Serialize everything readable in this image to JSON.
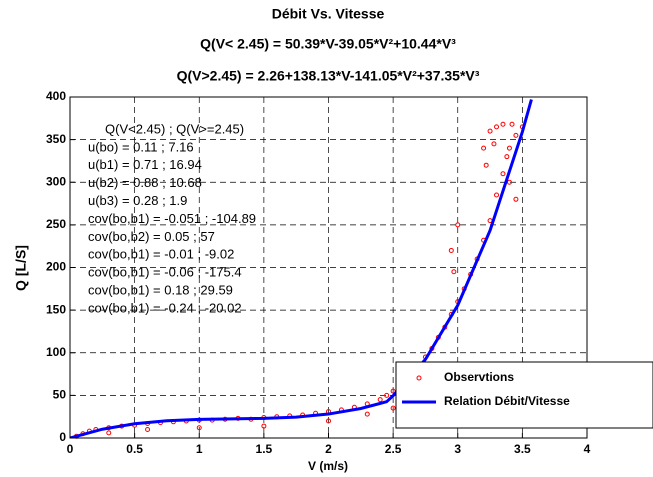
{
  "chart_data": {
    "type": "scatter",
    "title": "Débit Vs. Vitesse",
    "subtitles": [
      "Q(V< 2.45) = 50.39*V-39.05*V²+10.44*V³",
      "Q(V>2.45) = 2.26+138.13*V-141.05*V²+37.35*V³"
    ],
    "x_label": "V (m/s)",
    "y_label": "Q [L/S]",
    "xlim": [
      0,
      4
    ],
    "ylim": [
      0,
      400
    ],
    "xticks": [
      0,
      0.5,
      1,
      1.5,
      2,
      2.5,
      3,
      3.5,
      4
    ],
    "yticks": [
      0,
      50,
      100,
      150,
      200,
      250,
      300,
      350,
      400
    ],
    "grid": true,
    "legend": "lower right",
    "annotations": [
      "Q(V<2.45) ; Q(V>=2.45)",
      "u(bo) = 0.11 ; 7.16",
      "u(b1) = 0.71 ; 16.94",
      "u(b2) = 0.88 ; 10.68",
      "u(b3) = 0.28 ; 1.9",
      "cov(bo,b1) = -0.051 ; -104.89",
      "cov(bo,b2) = 0.05 ; 57",
      "cov(bo,b1) = -0.01 ; -9.02",
      "cov(bo,b1) = -0.06 ; -175.4",
      "cov(bo,b1) =  0.18 ; 29.59",
      "cov(bo,b1) = -0.24 ; -20.02"
    ],
    "series": [
      {
        "name": "Observtions",
        "color": "#ff0000",
        "style": "markers",
        "x": [
          0.05,
          0.1,
          0.15,
          0.2,
          0.3,
          0.4,
          0.5,
          0.6,
          0.7,
          0.8,
          0.9,
          1.0,
          1.1,
          1.2,
          1.3,
          1.4,
          1.5,
          1.6,
          1.7,
          1.8,
          1.9,
          2.0,
          2.1,
          2.2,
          2.3,
          2.4,
          2.45,
          2.5,
          2.55,
          2.6,
          2.65,
          2.7,
          2.75,
          2.8,
          2.85,
          2.9,
          2.95,
          3.0,
          3.05,
          3.1,
          3.15,
          3.2,
          3.25,
          3.3,
          3.35,
          3.4,
          3.45,
          3.5,
          0.3,
          0.6,
          1.0,
          1.5,
          2.0,
          2.3,
          2.5,
          2.6,
          2.8,
          2.95,
          2.97,
          3.0,
          3.2,
          3.25,
          3.3,
          3.35,
          3.4,
          3.45,
          3.22,
          3.28,
          3.38,
          3.42
        ],
        "values": [
          2,
          5,
          8,
          10,
          12,
          14,
          15,
          17,
          18,
          19,
          20,
          21,
          21,
          22,
          23,
          22,
          24,
          25,
          26,
          27,
          29,
          31,
          33,
          36,
          40,
          45,
          50,
          55,
          62,
          70,
          78,
          86,
          95,
          105,
          118,
          130,
          145,
          160,
          175,
          192,
          210,
          232,
          255,
          285,
          310,
          340,
          355,
          365,
          6,
          10,
          12,
          14,
          20,
          28,
          35,
          50,
          80,
          220,
          195,
          250,
          340,
          360,
          365,
          368,
          300,
          280,
          320,
          345,
          330,
          368
        ]
      },
      {
        "name": "Relation Débit/Vitesse",
        "color": "#0000ff",
        "style": "line",
        "x": [
          0,
          0.25,
          0.5,
          0.75,
          1,
          1.25,
          1.5,
          1.75,
          2,
          2.25,
          2.45,
          2.5,
          2.75,
          3,
          3.25,
          3.5,
          3.57
        ],
        "values": [
          0,
          10.3,
          16.7,
          20.2,
          21.8,
          22.4,
          23,
          24.5,
          28.1,
          34.6,
          42.6,
          49.6,
          92.2,
          155.7,
          243.5,
          359.2,
          397.1
        ]
      }
    ]
  }
}
